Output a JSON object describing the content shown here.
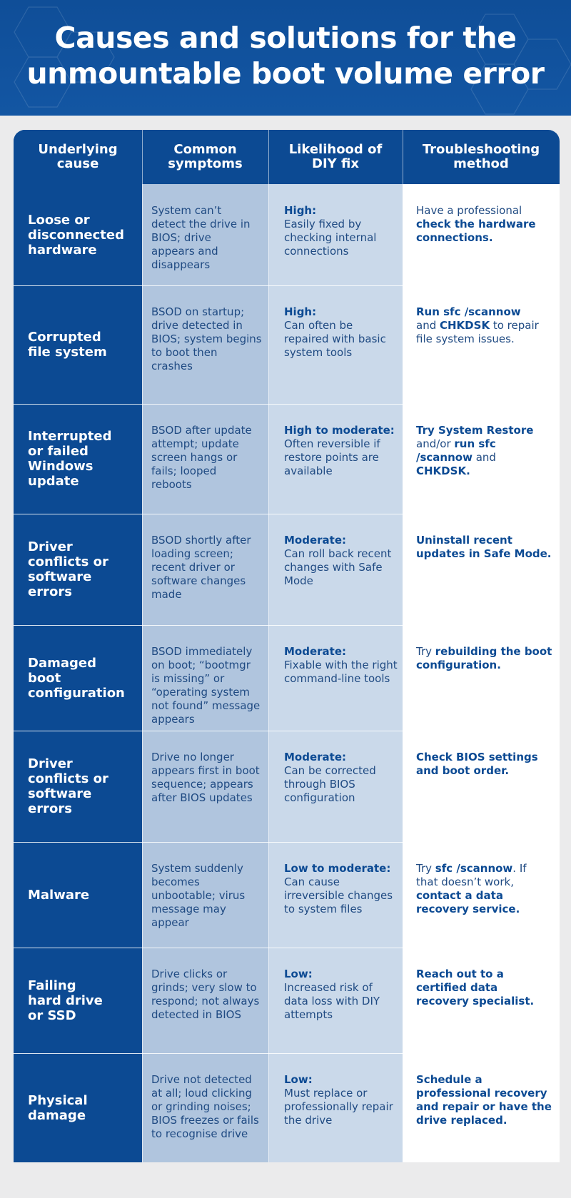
{
  "title": "Causes and solutions for the\nunmountable boot volume error",
  "headers": [
    "Underlying\ncause",
    "Common\nsymptoms",
    "Likelihood of\nDIY fix",
    "Troubleshooting\nmethod"
  ],
  "rows": [
    {
      "cause": "Loose or\ndisconnected\nhardware",
      "symptoms": "System can’t\ndetect the drive in\nBIOS; drive\nappears and\ndisappears",
      "likelihood_level": "High:",
      "likelihood_text": "Easily fixed by\nchecking internal\nconnections",
      "fix": [
        {
          "text": "Have a professional\n",
          "bold": false
        },
        {
          "text": "check the hardware\nconnections.",
          "bold": true
        }
      ]
    },
    {
      "cause": "Corrupted\nfile system",
      "symptoms": "BSOD on startup;\ndrive detected in\nBIOS; system begins\nto boot then\ncrashes",
      "likelihood_level": "High:",
      "likelihood_text": "Can often be\nrepaired with basic\nsystem tools",
      "fix": [
        {
          "text": "Run sfc /scannow",
          "bold": true
        },
        {
          "text": "\nand ",
          "bold": false
        },
        {
          "text": "CHKDSK",
          "bold": true
        },
        {
          "text": " to repair\nfile system issues.",
          "bold": false
        }
      ]
    },
    {
      "cause": "Interrupted\nor failed\nWindows\nupdate",
      "symptoms": "BSOD after update\nattempt; update\nscreen hangs or\nfails; looped\nreboots",
      "likelihood_level": "High to moderate:",
      "likelihood_text": "Often reversible if\nrestore points are\navailable",
      "fix": [
        {
          "text": "Try System Restore",
          "bold": true
        },
        {
          "text": "\nand/or ",
          "bold": false
        },
        {
          "text": "run sfc\n/scannow",
          "bold": true
        },
        {
          "text": " and\n",
          "bold": false
        },
        {
          "text": "CHKDSK.",
          "bold": true
        }
      ]
    },
    {
      "cause": "Driver\nconflicts or\nsoftware\nerrors",
      "symptoms": "BSOD shortly after\nloading screen;\nrecent driver or\nsoftware changes\nmade",
      "likelihood_level": "Moderate:",
      "likelihood_text": "Can roll back recent\nchanges with Safe\nMode",
      "fix": [
        {
          "text": "Uninstall recent\nupdates in Safe Mode.",
          "bold": true
        }
      ]
    },
    {
      "cause": "Damaged\nboot\nconfiguration",
      "symptoms": "BSOD immediately\non boot; “bootmgr\nis missing” or\n“operating system\nnot found” message\nappears",
      "likelihood_level": "Moderate:",
      "likelihood_text": "Fixable with the right\ncommand-line tools",
      "fix": [
        {
          "text": "Try ",
          "bold": false
        },
        {
          "text": "rebuilding the boot\nconfiguration.",
          "bold": true
        }
      ]
    },
    {
      "cause": "Driver\nconflicts or\nsoftware\nerrors",
      "symptoms": "Drive no longer\nappears first in boot\nsequence; appears\nafter BIOS updates",
      "likelihood_level": "Moderate:",
      "likelihood_text": "Can be corrected\nthrough BIOS\nconfiguration",
      "fix": [
        {
          "text": "Check BIOS settings\nand boot order.",
          "bold": true
        }
      ]
    },
    {
      "cause": "Malware",
      "symptoms": "System suddenly\nbecomes\nunbootable; virus\nmessage may\nappear",
      "likelihood_level": "Low to moderate:",
      "likelihood_text": "Can cause\nirreversible changes\nto system files",
      "fix": [
        {
          "text": "Try ",
          "bold": false
        },
        {
          "text": "sfc /scannow",
          "bold": true
        },
        {
          "text": ". If\nthat doesn’t work,\n",
          "bold": false
        },
        {
          "text": "contact a data\nrecovery service.",
          "bold": true
        }
      ]
    },
    {
      "cause": "Failing\nhard drive\nor SSD",
      "symptoms": "Drive clicks or\ngrinds; very slow to\nrespond; not always\ndetected in BIOS",
      "likelihood_level": "Low:",
      "likelihood_text": "Increased risk of\ndata loss with DIY\nattempts",
      "fix": [
        {
          "text": "Reach out to a\ncertified data\nrecovery specialist.",
          "bold": true
        }
      ]
    },
    {
      "cause": "Physical\ndamage",
      "symptoms": "Drive not detected\nat all; loud clicking\nor grinding noises;\nBIOS freezes or fails\nto recognise drive",
      "likelihood_level": "Low:",
      "likelihood_text": "Must replace or\nprofessionally repair\nthe drive",
      "fix": [
        {
          "text": "Schedule a\nprofessional recovery\nand repair or have the\ndrive replaced.",
          "bold": true
        }
      ]
    }
  ]
}
